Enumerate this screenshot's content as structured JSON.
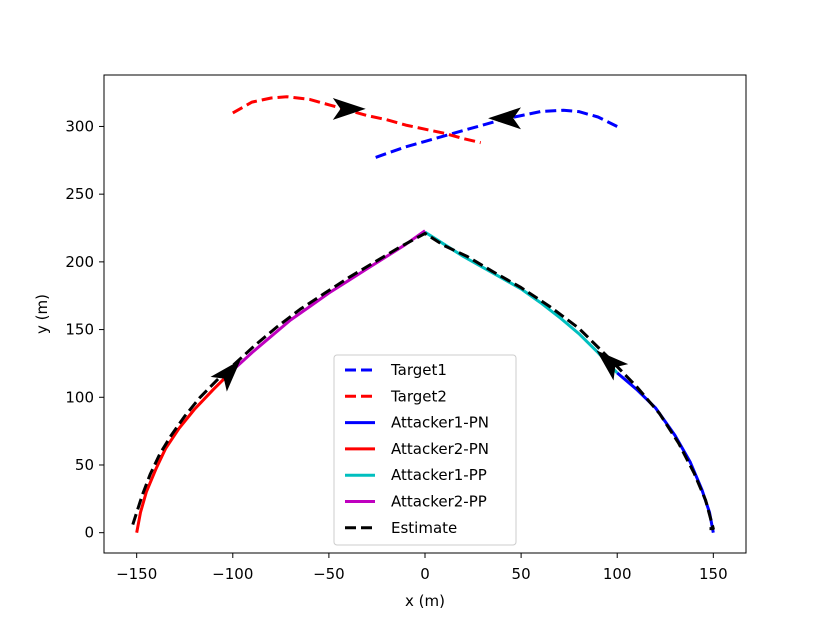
{
  "chart_data": {
    "type": "line",
    "xlabel": "x (m)",
    "ylabel": "y (m)",
    "xlim": [
      -167,
      167
    ],
    "ylim": [
      -15,
      338
    ],
    "xticks": [
      -150,
      -100,
      -50,
      0,
      50,
      100,
      150
    ],
    "xtick_labels": [
      "−150",
      "−100",
      "−50",
      "0",
      "50",
      "100",
      "150"
    ],
    "yticks": [
      0,
      50,
      100,
      150,
      200,
      250,
      300
    ],
    "ytick_labels": [
      "0",
      "50",
      "100",
      "150",
      "200",
      "250",
      "300"
    ],
    "grid": false,
    "legend_position": "lower center",
    "series": [
      {
        "name": "Target1",
        "color": "#0000ff",
        "style": "dashed",
        "x": [
          100,
          90,
          80,
          72,
          60,
          50,
          40,
          30,
          20,
          10,
          0,
          -10,
          -20,
          -28
        ],
        "y": [
          300,
          307,
          311,
          312,
          311,
          308,
          305,
          301,
          297,
          293,
          289,
          285,
          280,
          276
        ]
      },
      {
        "name": "Target2",
        "color": "#ff0000",
        "style": "dashed",
        "x": [
          -100,
          -90,
          -80,
          -72,
          -60,
          -50,
          -40,
          -30,
          -20,
          -10,
          0,
          10,
          20,
          29
        ],
        "y": [
          310,
          318,
          321,
          322,
          320,
          316,
          312,
          308,
          305,
          301,
          298,
          295,
          291,
          288
        ]
      },
      {
        "name": "Attacker1-PN",
        "color": "#0000ff",
        "style": "solid",
        "x": [
          150,
          148,
          144,
          138,
          130,
          120,
          110,
          100
        ],
        "y": [
          0,
          15,
          32,
          52,
          72,
          92,
          106,
          118
        ]
      },
      {
        "name": "Attacker2-PN",
        "color": "#ff0000",
        "style": "solid",
        "x": [
          -150,
          -148,
          -145,
          -140,
          -135,
          -128,
          -120,
          -110,
          -100
        ],
        "y": [
          0,
          15,
          30,
          47,
          62,
          77,
          91,
          106,
          120
        ]
      },
      {
        "name": "Attacker1-PP",
        "color": "#00bfbf",
        "style": "solid",
        "x": [
          100,
          90,
          80,
          70,
          60,
          50,
          40,
          30,
          20,
          10,
          0
        ],
        "y": [
          118,
          133,
          147,
          159,
          170,
          180,
          188,
          196,
          204,
          213,
          222
        ]
      },
      {
        "name": "Attacker2-PP",
        "color": "#bf00bf",
        "style": "solid",
        "x": [
          -100,
          -90,
          -80,
          -70,
          -60,
          -50,
          -40,
          -30,
          -20,
          -10,
          0
        ],
        "y": [
          120,
          133,
          145,
          157,
          167,
          177,
          186,
          195,
          204,
          213,
          223
        ]
      },
      {
        "name": "Estimate",
        "color": "#000000",
        "style": "dashed",
        "x": [
          -152,
          -150,
          -147,
          -143,
          -138,
          -132,
          -125,
          -117,
          -108,
          -98,
          -88,
          -77,
          -65,
          -52,
          -39,
          -26,
          -13,
          0,
          10,
          22,
          35,
          50,
          65,
          80,
          95,
          110,
          122,
          132,
          140,
          146,
          150,
          148
        ],
        "y": [
          6,
          15,
          28,
          43,
          58,
          72,
          86,
          100,
          113,
          126,
          139,
          152,
          165,
          177,
          189,
          200,
          211,
          221,
          212,
          204,
          193,
          181,
          167,
          151,
          130,
          108,
          88,
          66,
          44,
          24,
          3,
          3
        ]
      }
    ],
    "arrows": [
      {
        "series": "Target1",
        "x": 42,
        "y": 306,
        "direction": "left"
      },
      {
        "series": "Target2",
        "x": -40,
        "y": 313,
        "direction": "right"
      },
      {
        "series": "Attacker1",
        "x": 96,
        "y": 126,
        "direction": "up-left"
      },
      {
        "series": "Attacker2",
        "x": -102,
        "y": 118,
        "direction": "up-right"
      }
    ]
  }
}
